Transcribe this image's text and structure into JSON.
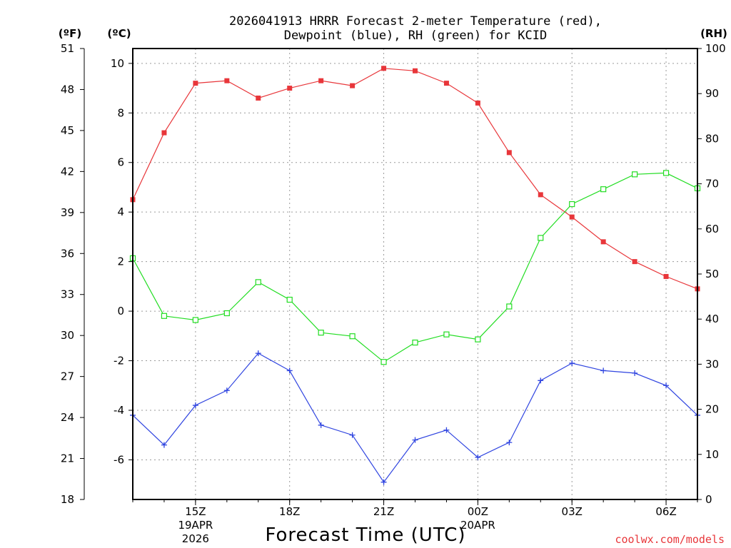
{
  "colors": {
    "temperature": "#e8363a",
    "dewpoint": "#2f44e0",
    "rh": "#22dd22",
    "credit": "#e8363a"
  },
  "chart_data": {
    "type": "line",
    "title_lines": [
      "2026041913 HRRR Forecast 2-meter Temperature (red),",
      "Dewpoint (blue), RH (green) for KCID"
    ],
    "xlabel": "Forecast Time (UTC)",
    "credit": "coolwx.com/models",
    "x_hours": [
      0,
      1,
      2,
      3,
      4,
      5,
      6,
      7,
      8,
      9,
      10,
      11,
      12,
      13,
      14,
      15,
      16,
      17,
      18
    ],
    "xlim": [
      0,
      18
    ],
    "x_ticks": [
      {
        "hour": 2,
        "lines": [
          "15Z",
          "19APR",
          "2026"
        ]
      },
      {
        "hour": 5,
        "lines": [
          "18Z"
        ]
      },
      {
        "hour": 8,
        "lines": [
          "21Z"
        ]
      },
      {
        "hour": 11,
        "lines": [
          "00Z",
          "20APR"
        ]
      },
      {
        "hour": 14,
        "lines": [
          "03Z"
        ]
      },
      {
        "hour": 17,
        "lines": [
          "06Z"
        ]
      }
    ],
    "left_axis_c": {
      "unit": "(ºC)",
      "range": [
        -7.6,
        10.6
      ],
      "ticks": [
        "10",
        "8",
        "6",
        "4",
        "2",
        "0",
        "-2",
        "-4",
        "-6"
      ]
    },
    "left_axis_f": {
      "unit": "(ºF)",
      "range": [
        18,
        51
      ],
      "ticks": [
        "51",
        "48",
        "45",
        "42",
        "39",
        "36",
        "33",
        "30",
        "27",
        "24",
        "21",
        "18"
      ]
    },
    "right_axis_rh": {
      "unit": "(RH)",
      "range": [
        0,
        100
      ],
      "ticks": [
        "100",
        "90",
        "80",
        "70",
        "60",
        "50",
        "40",
        "30",
        "20",
        "10",
        "0"
      ]
    },
    "series": [
      {
        "name": "Temperature",
        "unit": "C",
        "marker": "filled-square",
        "values": [
          4.5,
          7.2,
          9.2,
          9.3,
          8.6,
          9.0,
          9.3,
          9.1,
          9.8,
          9.7,
          9.2,
          8.4,
          6.4,
          4.7,
          3.8,
          2.8,
          2.0,
          1.4,
          0.9
        ]
      },
      {
        "name": "Dewpoint",
        "unit": "C",
        "marker": "plus",
        "values": [
          -4.2,
          -5.4,
          -3.8,
          -3.2,
          -1.7,
          -2.4,
          -4.6,
          -5.0,
          -6.9,
          -5.2,
          -4.8,
          -5.9,
          -5.3,
          -2.8,
          -2.1,
          -2.4,
          -2.5,
          -3.0,
          -4.2
        ]
      },
      {
        "name": "RH",
        "unit": "%",
        "marker": "open-square",
        "values": [
          53.5,
          40.7,
          39.8,
          41.3,
          48.2,
          44.3,
          37.0,
          36.2,
          30.5,
          34.8,
          36.6,
          35.5,
          42.8,
          58.0,
          65.5,
          68.8,
          72.1,
          72.4,
          69.0
        ]
      }
    ]
  }
}
